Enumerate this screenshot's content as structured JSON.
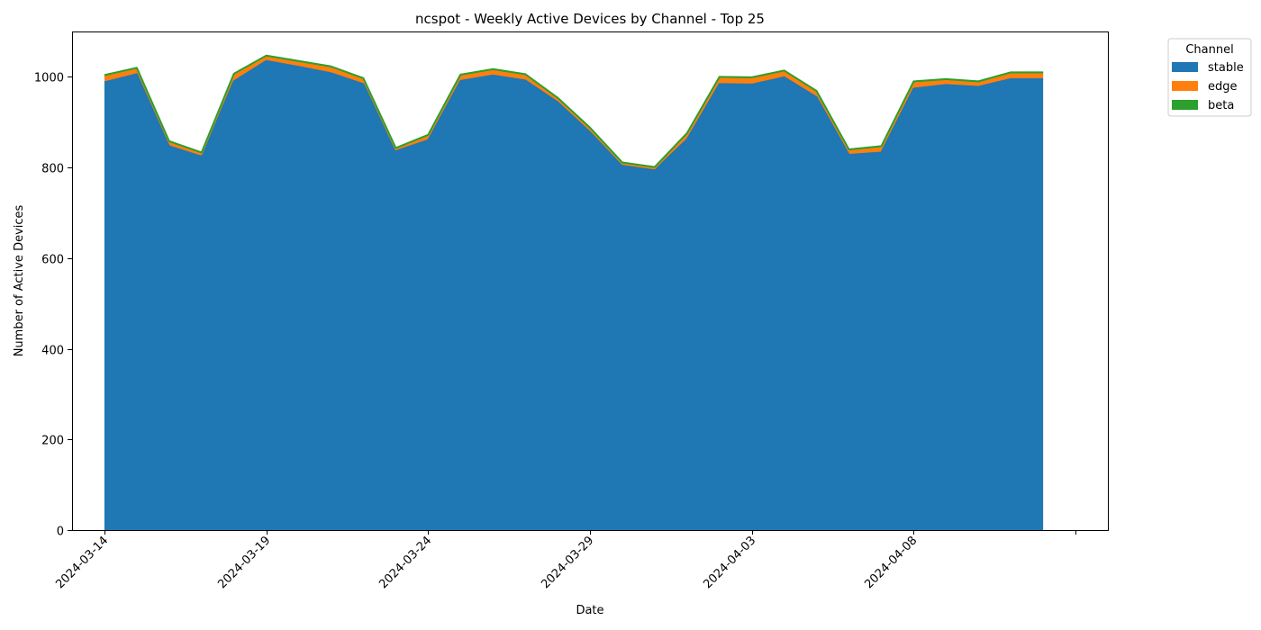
{
  "chart_data": {
    "type": "area",
    "stacked": true,
    "title": "ncspot - Weekly Active Devices by Channel - Top 25",
    "xlabel": "Date",
    "ylabel": "Number of Active Devices",
    "x": [
      "2024-03-14",
      "2024-03-15",
      "2024-03-16",
      "2024-03-17",
      "2024-03-18",
      "2024-03-19",
      "2024-03-20",
      "2024-03-21",
      "2024-03-22",
      "2024-03-23",
      "2024-03-24",
      "2024-03-25",
      "2024-03-26",
      "2024-03-27",
      "2024-03-28",
      "2024-03-29",
      "2024-03-30",
      "2024-03-31",
      "2024-04-01",
      "2024-04-02",
      "2024-04-03",
      "2024-04-04",
      "2024-04-05",
      "2024-04-06",
      "2024-04-07",
      "2024-04-08",
      "2024-04-09",
      "2024-04-10",
      "2024-04-11",
      "2024-04-12"
    ],
    "xticks": [
      "2024-03-14",
      "2024-03-19",
      "2024-03-24",
      "2024-03-29",
      "2024-04-03",
      "2024-04-08"
    ],
    "xlim": [
      "2024-03-13",
      "2024-04-14"
    ],
    "ylim": [
      0,
      1100
    ],
    "yticks": [
      0,
      200,
      400,
      600,
      800,
      1000
    ],
    "grid": false,
    "legend_title": "Channel",
    "legend_position": "outside-top-right",
    "series": [
      {
        "name": "stable",
        "color": "#1f77b4",
        "values": [
          988,
          1006,
          847,
          824,
          990,
          1035,
          1022,
          1008,
          984,
          836,
          860,
          991,
          1003,
          992,
          944,
          878,
          804,
          794,
          862,
          984,
          983,
          999,
          955,
          828,
          833,
          974,
          982,
          978,
          995,
          995
        ]
      },
      {
        "name": "edge",
        "color": "#ff7f0e",
        "values": [
          12,
          10,
          8,
          6,
          13,
          8,
          9,
          11,
          10,
          4,
          8,
          10,
          10,
          10,
          6,
          6,
          4,
          4,
          10,
          12,
          12,
          11,
          10,
          8,
          10,
          12,
          9,
          8,
          11,
          11
        ]
      },
      {
        "name": "beta",
        "color": "#2ca02c",
        "values": [
          4,
          4,
          3,
          3,
          4,
          4,
          4,
          4,
          3,
          3,
          4,
          4,
          4,
          4,
          4,
          4,
          3,
          3,
          4,
          4,
          4,
          4,
          4,
          4,
          4,
          4,
          4,
          4,
          4,
          4
        ]
      }
    ]
  }
}
